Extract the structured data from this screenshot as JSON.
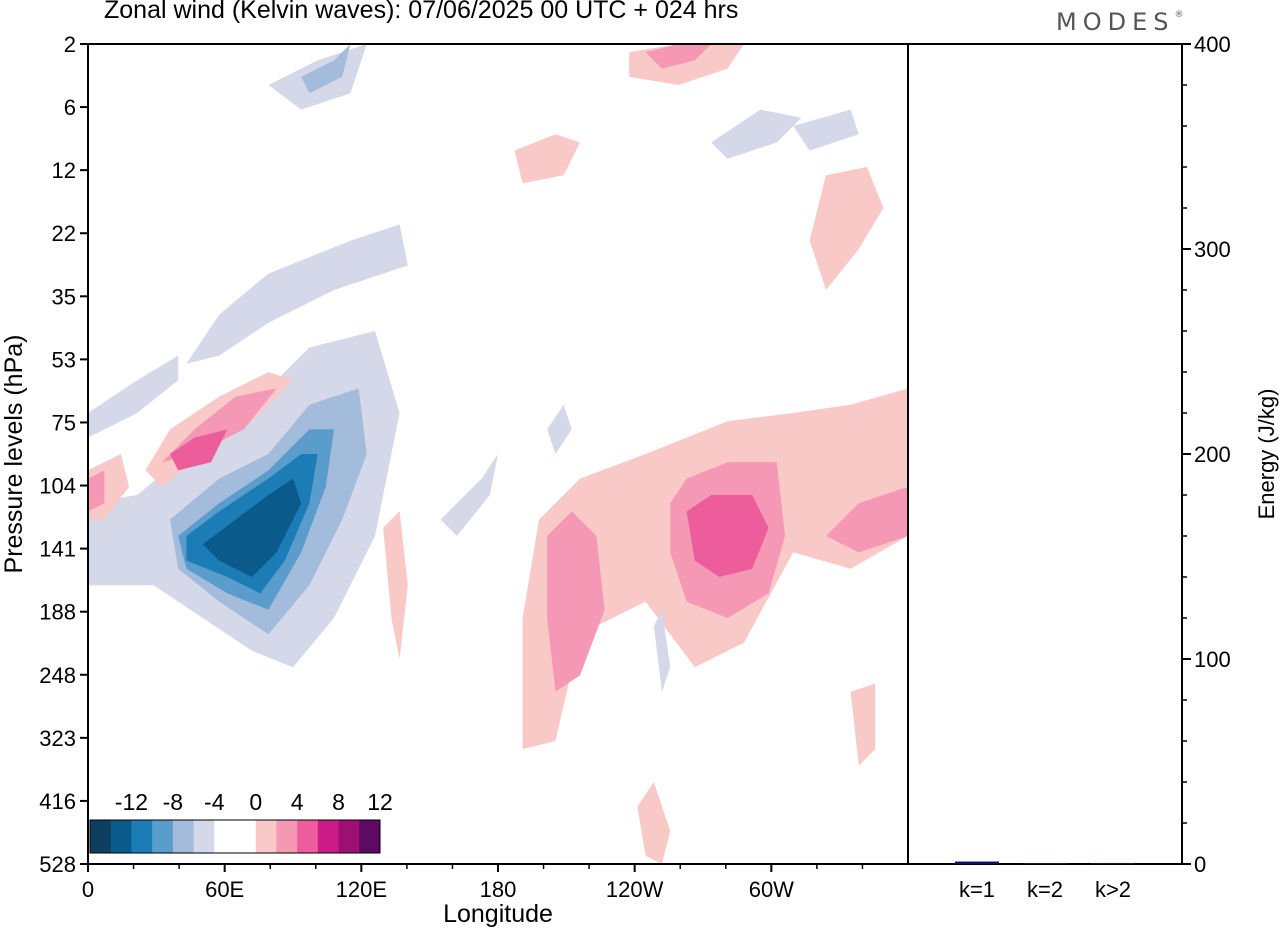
{
  "title": "Zonal wind (Kelvin waves):  07/06/2025  00 UTC  + 024 hrs",
  "logo": {
    "text": "MODES",
    "mark": "®"
  },
  "chart_data": [
    {
      "type": "heatmap",
      "xlabel": "Longitude",
      "ylabel": "Pressure levels (hPa)",
      "x_ticks": [
        "0",
        "60E",
        "120E",
        "180",
        "120W",
        "60W"
      ],
      "y_ticks": [
        "2",
        "6",
        "12",
        "22",
        "35",
        "53",
        "75",
        "104",
        "141",
        "188",
        "248",
        "323",
        "416",
        "528"
      ],
      "colorbar": {
        "labels": [
          "-12",
          "-8",
          "-4",
          "0",
          "4",
          "8",
          "12"
        ],
        "colors": [
          "#0d3f5f",
          "#0b5a8c",
          "#1c7cb6",
          "#5a9ccb",
          "#a3bcdb",
          "#d4d8e8",
          "#ffffff",
          "#ffffff",
          "#f8c9c6",
          "#f598b5",
          "#ed5d9c",
          "#cc1b86",
          "#9e0f72",
          "#5c0a64"
        ]
      },
      "regions": [
        {
          "color": "#d4d8e8",
          "pts": [
            [
              0.06,
              0.55
            ],
            [
              0.12,
              0.5
            ],
            [
              0.2,
              0.44
            ],
            [
              0.27,
              0.37
            ],
            [
              0.35,
              0.35
            ],
            [
              0.38,
              0.45
            ],
            [
              0.35,
              0.6
            ],
            [
              0.3,
              0.7
            ],
            [
              0.25,
              0.76
            ],
            [
              0.2,
              0.74
            ],
            [
              0.14,
              0.7
            ],
            [
              0.08,
              0.66
            ],
            [
              0.0,
              0.66
            ],
            [
              0.0,
              0.56
            ]
          ]
        },
        {
          "color": "#a3bcdb",
          "pts": [
            [
              0.1,
              0.58
            ],
            [
              0.16,
              0.53
            ],
            [
              0.22,
              0.5
            ],
            [
              0.27,
              0.44
            ],
            [
              0.33,
              0.42
            ],
            [
              0.34,
              0.5
            ],
            [
              0.31,
              0.58
            ],
            [
              0.27,
              0.66
            ],
            [
              0.22,
              0.72
            ],
            [
              0.16,
              0.68
            ],
            [
              0.11,
              0.64
            ]
          ]
        },
        {
          "color": "#5a9ccb",
          "pts": [
            [
              0.11,
              0.6
            ],
            [
              0.16,
              0.56
            ],
            [
              0.22,
              0.52
            ],
            [
              0.27,
              0.47
            ],
            [
              0.3,
              0.47
            ],
            [
              0.29,
              0.54
            ],
            [
              0.26,
              0.62
            ],
            [
              0.22,
              0.69
            ],
            [
              0.17,
              0.67
            ],
            [
              0.12,
              0.64
            ]
          ]
        },
        {
          "color": "#1c7cb6",
          "pts": [
            [
              0.12,
              0.6
            ],
            [
              0.16,
              0.57
            ],
            [
              0.22,
              0.53
            ],
            [
              0.26,
              0.5
            ],
            [
              0.28,
              0.5
            ],
            [
              0.27,
              0.56
            ],
            [
              0.24,
              0.63
            ],
            [
              0.21,
              0.67
            ],
            [
              0.17,
              0.65
            ],
            [
              0.12,
              0.63
            ]
          ]
        },
        {
          "color": "#0b5a8c",
          "pts": [
            [
              0.14,
              0.61
            ],
            [
              0.18,
              0.58
            ],
            [
              0.22,
              0.55
            ],
            [
              0.25,
              0.53
            ],
            [
              0.26,
              0.56
            ],
            [
              0.23,
              0.62
            ],
            [
              0.2,
              0.65
            ],
            [
              0.16,
              0.63
            ]
          ]
        },
        {
          "color": "#d4d8e8",
          "pts": [
            [
              0.12,
              0.39
            ],
            [
              0.16,
              0.33
            ],
            [
              0.22,
              0.28
            ],
            [
              0.32,
              0.24
            ],
            [
              0.38,
              0.22
            ],
            [
              0.39,
              0.27
            ],
            [
              0.3,
              0.3
            ],
            [
              0.22,
              0.34
            ],
            [
              0.16,
              0.38
            ]
          ]
        },
        {
          "color": "#d4d8e8",
          "pts": [
            [
              0.0,
              0.45
            ],
            [
              0.06,
              0.41
            ],
            [
              0.11,
              0.38
            ],
            [
              0.11,
              0.41
            ],
            [
              0.06,
              0.45
            ],
            [
              0.0,
              0.48
            ]
          ]
        },
        {
          "color": "#f8c9c6",
          "pts": [
            [
              0.07,
              0.52
            ],
            [
              0.1,
              0.47
            ],
            [
              0.16,
              0.43
            ],
            [
              0.22,
              0.4
            ],
            [
              0.25,
              0.41
            ],
            [
              0.2,
              0.46
            ],
            [
              0.14,
              0.5
            ],
            [
              0.09,
              0.54
            ]
          ]
        },
        {
          "color": "#f598b5",
          "pts": [
            [
              0.09,
              0.51
            ],
            [
              0.13,
              0.47
            ],
            [
              0.18,
              0.43
            ],
            [
              0.23,
              0.42
            ],
            [
              0.19,
              0.47
            ],
            [
              0.13,
              0.5
            ]
          ]
        },
        {
          "color": "#ed5d9c",
          "pts": [
            [
              0.1,
              0.5
            ],
            [
              0.13,
              0.48
            ],
            [
              0.17,
              0.47
            ],
            [
              0.15,
              0.51
            ],
            [
              0.11,
              0.52
            ]
          ]
        },
        {
          "color": "#f8c9c6",
          "pts": [
            [
              0.55,
              0.58
            ],
            [
              0.6,
              0.53
            ],
            [
              0.68,
              0.5
            ],
            [
              0.78,
              0.46
            ],
            [
              0.86,
              0.45
            ],
            [
              0.93,
              0.44
            ],
            [
              1.0,
              0.42
            ],
            [
              1.0,
              0.6
            ],
            [
              0.93,
              0.64
            ],
            [
              0.86,
              0.62
            ],
            [
              0.8,
              0.73
            ],
            [
              0.74,
              0.76
            ],
            [
              0.68,
              0.68
            ],
            [
              0.6,
              0.72
            ],
            [
              0.57,
              0.85
            ],
            [
              0.53,
              0.86
            ],
            [
              0.53,
              0.7
            ]
          ]
        },
        {
          "color": "#f598b5",
          "pts": [
            [
              0.56,
              0.6
            ],
            [
              0.59,
              0.57
            ],
            [
              0.62,
              0.6
            ],
            [
              0.63,
              0.69
            ],
            [
              0.6,
              0.77
            ],
            [
              0.57,
              0.79
            ],
            [
              0.56,
              0.7
            ]
          ]
        },
        {
          "color": "#f598b5",
          "pts": [
            [
              0.71,
              0.56
            ],
            [
              0.73,
              0.53
            ],
            [
              0.78,
              0.51
            ],
            [
              0.84,
              0.51
            ],
            [
              0.85,
              0.6
            ],
            [
              0.83,
              0.67
            ],
            [
              0.78,
              0.7
            ],
            [
              0.73,
              0.68
            ],
            [
              0.71,
              0.62
            ]
          ]
        },
        {
          "color": "#ed5d9c",
          "pts": [
            [
              0.73,
              0.57
            ],
            [
              0.76,
              0.55
            ],
            [
              0.81,
              0.55
            ],
            [
              0.83,
              0.59
            ],
            [
              0.81,
              0.64
            ],
            [
              0.77,
              0.65
            ],
            [
              0.74,
              0.63
            ]
          ]
        },
        {
          "color": "#f598b5",
          "pts": [
            [
              0.9,
              0.6
            ],
            [
              0.94,
              0.56
            ],
            [
              1.0,
              0.54
            ],
            [
              1.0,
              0.6
            ],
            [
              0.94,
              0.62
            ]
          ]
        },
        {
          "color": "#f8c9c6",
          "pts": [
            [
              0.0,
              0.52
            ],
            [
              0.04,
              0.5
            ],
            [
              0.05,
              0.54
            ],
            [
              0.02,
              0.58
            ],
            [
              0.0,
              0.58
            ]
          ]
        },
        {
          "color": "#f598b5",
          "pts": [
            [
              0.0,
              0.53
            ],
            [
              0.02,
              0.52
            ],
            [
              0.02,
              0.56
            ],
            [
              0.0,
              0.57
            ]
          ]
        },
        {
          "color": "#d4d8e8",
          "pts": [
            [
              0.22,
              0.05
            ],
            [
              0.28,
              0.02
            ],
            [
              0.34,
              0.0
            ],
            [
              0.32,
              0.06
            ],
            [
              0.26,
              0.08
            ]
          ]
        },
        {
          "color": "#a3bcdb",
          "pts": [
            [
              0.26,
              0.04
            ],
            [
              0.3,
              0.02
            ],
            [
              0.32,
              0.0
            ],
            [
              0.31,
              0.04
            ],
            [
              0.27,
              0.06
            ]
          ]
        },
        {
          "color": "#f8c9c6",
          "pts": [
            [
              0.66,
              0.01
            ],
            [
              0.72,
              0.0
            ],
            [
              0.8,
              0.0
            ],
            [
              0.78,
              0.03
            ],
            [
              0.72,
              0.05
            ],
            [
              0.66,
              0.04
            ]
          ]
        },
        {
          "color": "#f598b5",
          "pts": [
            [
              0.68,
              0.01
            ],
            [
              0.72,
              0.0
            ],
            [
              0.76,
              0.0
            ],
            [
              0.74,
              0.02
            ],
            [
              0.7,
              0.03
            ]
          ]
        },
        {
          "color": "#f8c9c6",
          "pts": [
            [
              0.52,
              0.13
            ],
            [
              0.57,
              0.11
            ],
            [
              0.6,
              0.12
            ],
            [
              0.58,
              0.16
            ],
            [
              0.53,
              0.17
            ]
          ]
        },
        {
          "color": "#f8c9c6",
          "pts": [
            [
              0.9,
              0.16
            ],
            [
              0.95,
              0.15
            ],
            [
              0.97,
              0.2
            ],
            [
              0.94,
              0.25
            ],
            [
              0.9,
              0.3
            ],
            [
              0.88,
              0.24
            ]
          ]
        },
        {
          "color": "#d4d8e8",
          "pts": [
            [
              0.76,
              0.12
            ],
            [
              0.82,
              0.08
            ],
            [
              0.87,
              0.09
            ],
            [
              0.84,
              0.12
            ],
            [
              0.78,
              0.14
            ]
          ]
        },
        {
          "color": "#d4d8e8",
          "pts": [
            [
              0.86,
              0.1
            ],
            [
              0.93,
              0.08
            ],
            [
              0.94,
              0.11
            ],
            [
              0.88,
              0.13
            ]
          ]
        },
        {
          "color": "#d4d8e8",
          "pts": [
            [
              0.43,
              0.58
            ],
            [
              0.48,
              0.53
            ],
            [
              0.5,
              0.5
            ],
            [
              0.49,
              0.55
            ],
            [
              0.45,
              0.6
            ]
          ]
        },
        {
          "color": "#f8c9c6",
          "pts": [
            [
              0.36,
              0.59
            ],
            [
              0.38,
              0.57
            ],
            [
              0.39,
              0.66
            ],
            [
              0.38,
              0.75
            ],
            [
              0.37,
              0.7
            ]
          ]
        },
        {
          "color": "#f8c9c6",
          "pts": [
            [
              0.93,
              0.79
            ],
            [
              0.96,
              0.78
            ],
            [
              0.96,
              0.86
            ],
            [
              0.94,
              0.88
            ]
          ]
        },
        {
          "color": "#f8c9c6",
          "pts": [
            [
              0.67,
              0.93
            ],
            [
              0.69,
              0.9
            ],
            [
              0.71,
              0.96
            ],
            [
              0.7,
              1.0
            ],
            [
              0.68,
              0.99
            ]
          ]
        },
        {
          "color": "#d4d8e8",
          "pts": [
            [
              0.69,
              0.71
            ],
            [
              0.7,
              0.69
            ],
            [
              0.71,
              0.76
            ],
            [
              0.7,
              0.79
            ]
          ]
        },
        {
          "color": "#d4d8e8",
          "pts": [
            [
              0.56,
              0.47
            ],
            [
              0.58,
              0.44
            ],
            [
              0.59,
              0.47
            ],
            [
              0.57,
              0.5
            ]
          ]
        }
      ]
    },
    {
      "type": "bar",
      "ylabel": "Energy (J/kg)",
      "categories": [
        "k=1",
        "k=2",
        "k>2"
      ],
      "values": [
        1.2,
        0.2,
        0.5
      ],
      "ylim": [
        0,
        400
      ],
      "y_ticks": [
        "0",
        "100",
        "200",
        "300",
        "400"
      ],
      "bar_color": "#101060"
    }
  ]
}
